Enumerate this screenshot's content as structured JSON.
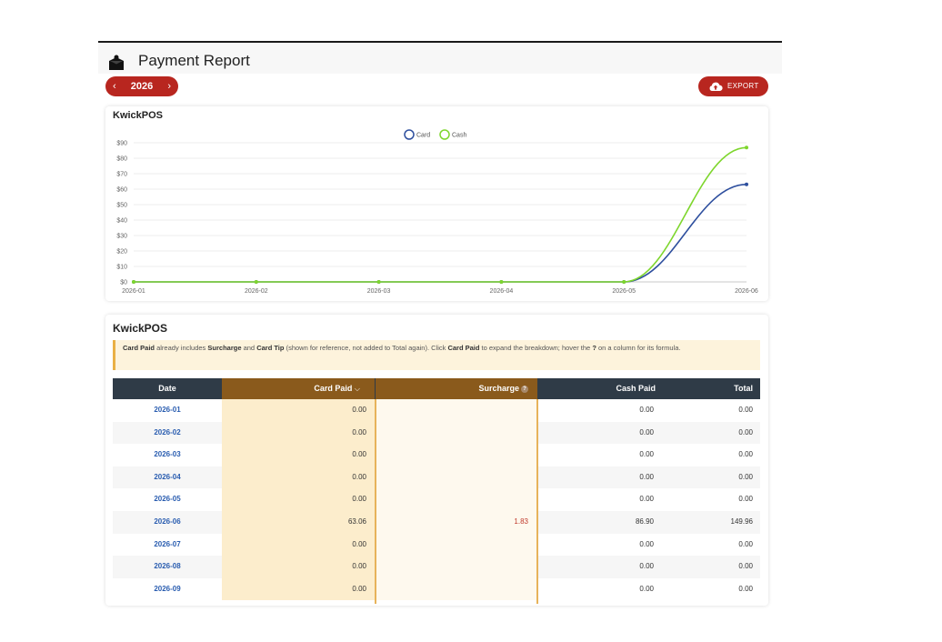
{
  "header": {
    "title": "Payment Report",
    "icon": "store-icon"
  },
  "year_selector": {
    "year": "2026",
    "prev": "‹",
    "next": "›"
  },
  "export": {
    "label": "EXPORT",
    "icon": "cloud-upload-icon"
  },
  "chart_card": {
    "title": "KwickPOS"
  },
  "chart_data": {
    "type": "line",
    "x": [
      "2026-01",
      "2026-02",
      "2026-03",
      "2026-04",
      "2026-05",
      "2026-06"
    ],
    "series": [
      {
        "name": "Card",
        "color": "#2e4f9e",
        "values": [
          0,
          0,
          0,
          0,
          0,
          63.06
        ]
      },
      {
        "name": "Cash",
        "color": "#7ed62d",
        "values": [
          0,
          0,
          0,
          0,
          0,
          86.9
        ]
      }
    ],
    "y_ticks": [
      "$0",
      "$10",
      "$20",
      "$30",
      "$40",
      "$50",
      "$60",
      "$70",
      "$80",
      "$90"
    ],
    "ylim": [
      0,
      90
    ],
    "grid": true,
    "legend": "top-center"
  },
  "table_card": {
    "title": "KwickPOS",
    "note": {
      "t1": "Card Paid",
      "t2": " already includes ",
      "t3": "Surcharge",
      "t4": " and ",
      "t5": "Card Tip",
      "t6": " (shown for reference, not added to Total again). Click ",
      "t7": "Card Paid",
      "t8": " to expand the breakdown; hover the ",
      "t9": "?",
      "t10": " on a column for its formula."
    },
    "columns": {
      "date": "Date",
      "card_paid": "Card Paid",
      "card_paid_chevron": "⌵",
      "surcharge": "Surcharge",
      "surcharge_help": "?",
      "cash_paid": "Cash Paid",
      "total": "Total"
    },
    "rows": [
      {
        "date": "2026-01",
        "card": "0.00",
        "surcharge": "",
        "cash": "0.00",
        "total": "0.00"
      },
      {
        "date": "2026-02",
        "card": "0.00",
        "surcharge": "",
        "cash": "0.00",
        "total": "0.00"
      },
      {
        "date": "2026-03",
        "card": "0.00",
        "surcharge": "",
        "cash": "0.00",
        "total": "0.00"
      },
      {
        "date": "2026-04",
        "card": "0.00",
        "surcharge": "",
        "cash": "0.00",
        "total": "0.00"
      },
      {
        "date": "2026-05",
        "card": "0.00",
        "surcharge": "",
        "cash": "0.00",
        "total": "0.00"
      },
      {
        "date": "2026-06",
        "card": "63.06",
        "surcharge": "1.83",
        "cash": "86.90",
        "total": "149.96"
      },
      {
        "date": "2026-07",
        "card": "0.00",
        "surcharge": "",
        "cash": "0.00",
        "total": "0.00"
      },
      {
        "date": "2026-08",
        "card": "0.00",
        "surcharge": "",
        "cash": "0.00",
        "total": "0.00"
      },
      {
        "date": "2026-09",
        "card": "0.00",
        "surcharge": "",
        "cash": "0.00",
        "total": "0.00"
      }
    ]
  }
}
